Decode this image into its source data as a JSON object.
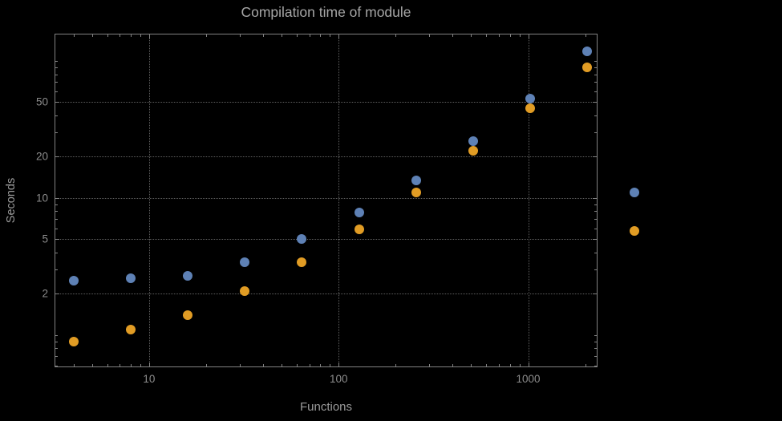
{
  "chart_data": {
    "type": "scatter",
    "title": "Compilation time of module",
    "xlabel": "Functions",
    "ylabel": "Seconds",
    "xscale": "log",
    "yscale": "log",
    "xlim": [
      3.2,
      2300
    ],
    "ylim": [
      0.59,
      156
    ],
    "grid": "dotted",
    "legend_position": "right-outside",
    "x": [
      4,
      8,
      16,
      32,
      64,
      128,
      256,
      512,
      1024,
      2048
    ],
    "series": [
      {
        "name": "series-1-blue",
        "color": "#5e81b5",
        "values": [
          2.5,
          2.6,
          2.7,
          3.4,
          5.0,
          7.8,
          13.5,
          26,
          53,
          117
        ]
      },
      {
        "name": "series-2-orange",
        "color": "#e19c24",
        "values": [
          0.9,
          1.1,
          1.4,
          2.1,
          3.4,
          5.9,
          11,
          22,
          45,
          90
        ]
      }
    ],
    "x_ticks": [
      {
        "value": 10,
        "label": "10"
      },
      {
        "value": 100,
        "label": "100"
      },
      {
        "value": 1000,
        "label": "1000"
      }
    ],
    "y_ticks": [
      {
        "value": 2,
        "label": "2"
      },
      {
        "value": 5,
        "label": "5"
      },
      {
        "value": 10,
        "label": "10"
      },
      {
        "value": 20,
        "label": "20"
      },
      {
        "value": 50,
        "label": "50"
      }
    ]
  },
  "legend": {
    "markers": [
      {
        "name": "series-1-marker",
        "color": "#5e81b5"
      },
      {
        "name": "series-2-marker",
        "color": "#e19c24"
      }
    ]
  },
  "colors": {
    "background": "#000000",
    "frame": "#828282",
    "grid": "#606060",
    "title_text": "#a6a6a6",
    "axis_label_text": "#9b9b9b",
    "tick_label_text": "#8c8c8c",
    "series1": "#5e81b5",
    "series2": "#e19c24"
  }
}
